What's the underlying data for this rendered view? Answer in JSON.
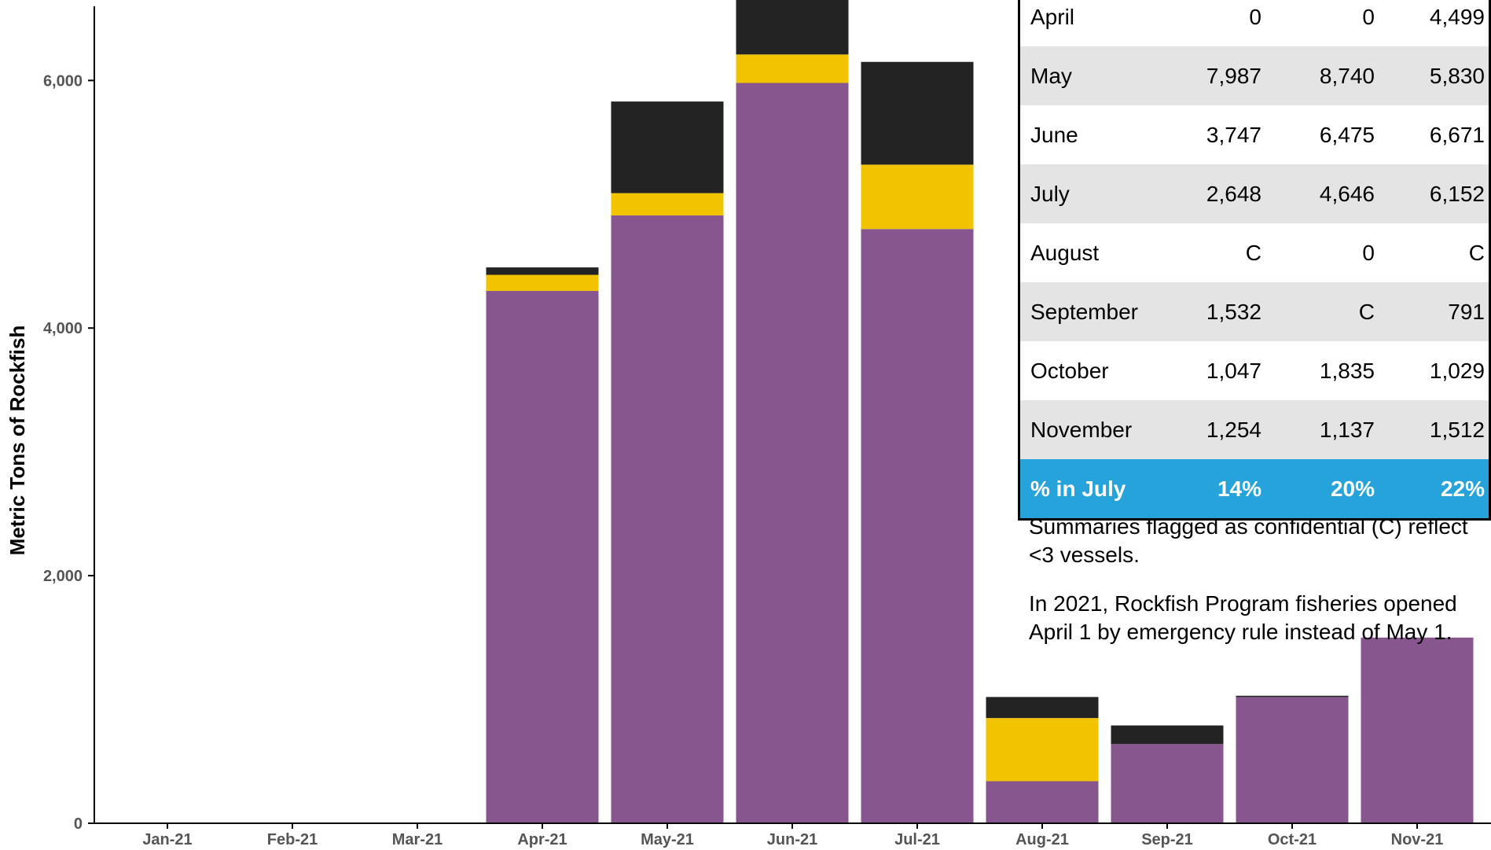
{
  "chart_data": {
    "type": "bar",
    "stacked": true,
    "categories": [
      "Jan-21",
      "Feb-21",
      "Mar-21",
      "Apr-21",
      "May-21",
      "Jun-21",
      "Jul-21",
      "Aug-21",
      "Sep-21",
      "Oct-21",
      "Nov-21"
    ],
    "series": [
      {
        "color": "#87568f",
        "values": [
          0,
          0,
          0,
          4300,
          4910,
          5980,
          4800,
          340,
          640,
          1020,
          1500
        ]
      },
      {
        "color": "#f2c300",
        "values": [
          0,
          0,
          0,
          130,
          180,
          230,
          520,
          510,
          0,
          0,
          0
        ]
      },
      {
        "color": "#232323",
        "values": [
          0,
          0,
          0,
          60,
          740,
          460,
          830,
          170,
          150,
          10,
          0
        ]
      }
    ],
    "ylabel": "Metric Tons of Rockfish",
    "yticks": [
      "0",
      "2,000",
      "4,000",
      "6,000"
    ],
    "ytick_values": [
      0,
      2000,
      4000,
      6000
    ],
    "ylim": [
      0,
      6650
    ],
    "grid": false
  },
  "table": {
    "rows": [
      {
        "month": "April",
        "v1": "0",
        "v2": "0",
        "v3": "4,499"
      },
      {
        "month": "May",
        "v1": "7,987",
        "v2": "8,740",
        "v3": "5,830"
      },
      {
        "month": "June",
        "v1": "3,747",
        "v2": "6,475",
        "v3": "6,671"
      },
      {
        "month": "July",
        "v1": "2,648",
        "v2": "4,646",
        "v3": "6,152"
      },
      {
        "month": "August",
        "v1": "C",
        "v2": "0",
        "v3": "C"
      },
      {
        "month": "September",
        "v1": "1,532",
        "v2": "C",
        "v3": "791"
      },
      {
        "month": "October",
        "v1": "1,047",
        "v2": "1,835",
        "v3": "1,029"
      },
      {
        "month": "November",
        "v1": "1,254",
        "v2": "1,137",
        "v3": "1,512"
      }
    ],
    "total": {
      "label": "% in July",
      "v1": "14%",
      "v2": "20%",
      "v3": "22%"
    },
    "total_color": "#27a3dc",
    "stripe_color": "#e4e4e4"
  },
  "notes": {
    "confidential": "Summaries flagged as confidential (C) reflect <3 vessels.",
    "emergency": "In 2021, Rockfish Program fisheries opened April 1 by emergency rule instead of May 1."
  }
}
